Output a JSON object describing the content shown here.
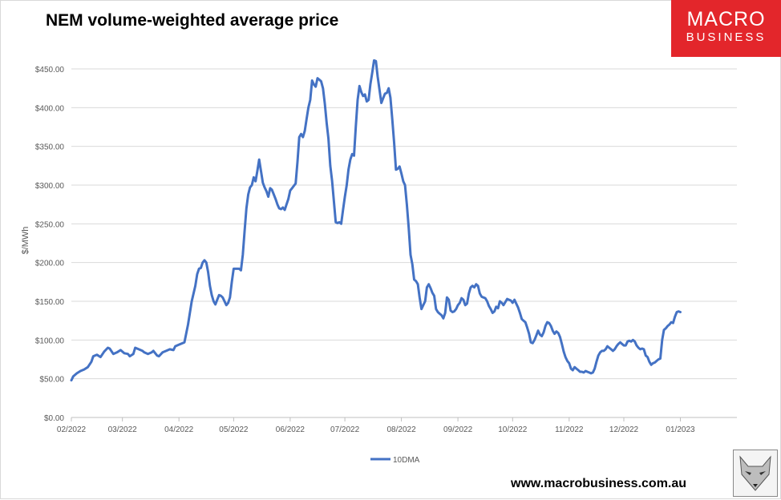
{
  "title": "NEM volume-weighted average price",
  "logo": {
    "line1": "MACRO",
    "line2": "BUSINESS",
    "color": "#e3262b"
  },
  "website": "www.macrobusiness.com.au",
  "chart_data": {
    "type": "line",
    "title": "NEM volume-weighted average price",
    "xlabel": "",
    "ylabel": "$/MWh",
    "ylim": [
      0,
      450
    ],
    "y_ticks": [
      {
        "value": 0,
        "label": "$0.00"
      },
      {
        "value": 50,
        "label": "$50.00"
      },
      {
        "value": 100,
        "label": "$100.00"
      },
      {
        "value": 150,
        "label": "$150.00"
      },
      {
        "value": 200,
        "label": "$200.00"
      },
      {
        "value": 250,
        "label": "$250.00"
      },
      {
        "value": 300,
        "label": "$300.00"
      },
      {
        "value": 350,
        "label": "$350.00"
      },
      {
        "value": 400,
        "label": "$400.00"
      },
      {
        "value": 450,
        "label": "$450.00"
      }
    ],
    "x_ticks": [
      {
        "day": 0,
        "label": "02/2022"
      },
      {
        "day": 28,
        "label": "03/2022"
      },
      {
        "day": 59,
        "label": "04/2022"
      },
      {
        "day": 89,
        "label": "05/2022"
      },
      {
        "day": 120,
        "label": "06/2022"
      },
      {
        "day": 150,
        "label": "07/2022"
      },
      {
        "day": 181,
        "label": "08/2022"
      },
      {
        "day": 212,
        "label": "09/2022"
      },
      {
        "day": 242,
        "label": "10/2022"
      },
      {
        "day": 273,
        "label": "11/2022"
      },
      {
        "day": 303,
        "label": "12/2022"
      },
      {
        "day": 334,
        "label": "01/2023"
      }
    ],
    "x_range_days": [
      0,
      365
    ],
    "legend": {
      "position": "bottom",
      "entries": [
        "10DMA"
      ]
    },
    "grid": true,
    "series": [
      {
        "name": "10DMA",
        "color": "#4472c4",
        "points": [
          [
            0,
            48
          ],
          [
            1,
            53
          ],
          [
            3,
            57
          ],
          [
            5,
            60
          ],
          [
            7,
            62
          ],
          [
            9,
            65
          ],
          [
            11,
            72
          ],
          [
            12,
            79
          ],
          [
            14,
            81
          ],
          [
            16,
            78
          ],
          [
            18,
            85
          ],
          [
            20,
            90
          ],
          [
            21,
            89
          ],
          [
            23,
            82
          ],
          [
            25,
            84
          ],
          [
            27,
            87
          ],
          [
            29,
            83
          ],
          [
            31,
            82
          ],
          [
            32,
            79
          ],
          [
            34,
            82
          ],
          [
            35,
            90
          ],
          [
            37,
            88
          ],
          [
            39,
            86
          ],
          [
            40,
            84
          ],
          [
            42,
            82
          ],
          [
            44,
            84
          ],
          [
            45,
            86
          ],
          [
            47,
            80
          ],
          [
            48,
            79
          ],
          [
            50,
            84
          ],
          [
            52,
            86
          ],
          [
            54,
            88
          ],
          [
            56,
            87
          ],
          [
            57,
            92
          ],
          [
            59,
            94
          ],
          [
            61,
            96
          ],
          [
            62,
            97
          ],
          [
            64,
            120
          ],
          [
            66,
            150
          ],
          [
            68,
            170
          ],
          [
            69,
            185
          ],
          [
            70,
            192
          ],
          [
            71,
            193
          ],
          [
            72,
            200
          ],
          [
            73,
            203
          ],
          [
            74,
            200
          ],
          [
            75,
            188
          ],
          [
            76,
            170
          ],
          [
            77,
            158
          ],
          [
            78,
            150
          ],
          [
            79,
            146
          ],
          [
            80,
            152
          ],
          [
            81,
            158
          ],
          [
            82,
            157
          ],
          [
            83,
            155
          ],
          [
            84,
            150
          ],
          [
            85,
            145
          ],
          [
            86,
            148
          ],
          [
            87,
            155
          ],
          [
            88,
            175
          ],
          [
            89,
            192
          ],
          [
            91,
            192
          ],
          [
            92,
            192
          ],
          [
            93,
            190
          ],
          [
            94,
            210
          ],
          [
            95,
            240
          ],
          [
            96,
            270
          ],
          [
            97,
            288
          ],
          [
            98,
            297
          ],
          [
            99,
            300
          ],
          [
            100,
            310
          ],
          [
            101,
            305
          ],
          [
            102,
            318
          ],
          [
            103,
            333
          ],
          [
            104,
            318
          ],
          [
            105,
            303
          ],
          [
            106,
            297
          ],
          [
            107,
            292
          ],
          [
            108,
            285
          ],
          [
            109,
            296
          ],
          [
            110,
            294
          ],
          [
            111,
            288
          ],
          [
            112,
            282
          ],
          [
            113,
            275
          ],
          [
            114,
            270
          ],
          [
            115,
            269
          ],
          [
            116,
            271
          ],
          [
            117,
            268
          ],
          [
            118,
            275
          ],
          [
            119,
            282
          ],
          [
            120,
            293
          ],
          [
            121,
            296
          ],
          [
            122,
            299
          ],
          [
            123,
            302
          ],
          [
            124,
            330
          ],
          [
            125,
            362
          ],
          [
            126,
            366
          ],
          [
            127,
            362
          ],
          [
            128,
            370
          ],
          [
            129,
            385
          ],
          [
            130,
            400
          ],
          [
            131,
            410
          ],
          [
            132,
            435
          ],
          [
            133,
            430
          ],
          [
            134,
            427
          ],
          [
            135,
            438
          ],
          [
            136,
            436
          ],
          [
            137,
            434
          ],
          [
            138,
            425
          ],
          [
            139,
            405
          ],
          [
            140,
            380
          ],
          [
            141,
            360
          ],
          [
            142,
            325
          ],
          [
            143,
            305
          ],
          [
            144,
            278
          ],
          [
            145,
            252
          ],
          [
            146,
            251
          ],
          [
            147,
            252
          ],
          [
            148,
            250
          ],
          [
            149,
            268
          ],
          [
            150,
            285
          ],
          [
            151,
            300
          ],
          [
            152,
            320
          ],
          [
            153,
            333
          ],
          [
            154,
            340
          ],
          [
            155,
            338
          ],
          [
            156,
            375
          ],
          [
            157,
            410
          ],
          [
            158,
            428
          ],
          [
            159,
            420
          ],
          [
            160,
            415
          ],
          [
            161,
            417
          ],
          [
            162,
            408
          ],
          [
            163,
            410
          ],
          [
            164,
            430
          ],
          [
            165,
            445
          ],
          [
            166,
            461
          ],
          [
            167,
            460
          ],
          [
            168,
            440
          ],
          [
            169,
            423
          ],
          [
            170,
            406
          ],
          [
            171,
            412
          ],
          [
            172,
            418
          ],
          [
            173,
            419
          ],
          [
            174,
            425
          ],
          [
            175,
            413
          ],
          [
            176,
            385
          ],
          [
            177,
            355
          ],
          [
            178,
            320
          ],
          [
            179,
            321
          ],
          [
            180,
            324
          ],
          [
            181,
            315
          ],
          [
            182,
            305
          ],
          [
            183,
            300
          ],
          [
            184,
            275
          ],
          [
            185,
            245
          ],
          [
            186,
            210
          ],
          [
            187,
            198
          ],
          [
            188,
            178
          ],
          [
            189,
            176
          ],
          [
            190,
            172
          ],
          [
            191,
            155
          ],
          [
            192,
            140
          ],
          [
            193,
            145
          ],
          [
            194,
            150
          ],
          [
            195,
            168
          ],
          [
            196,
            172
          ],
          [
            197,
            167
          ],
          [
            198,
            161
          ],
          [
            199,
            157
          ],
          [
            200,
            140
          ],
          [
            201,
            136
          ],
          [
            202,
            134
          ],
          [
            203,
            132
          ],
          [
            204,
            128
          ],
          [
            205,
            135
          ],
          [
            206,
            155
          ],
          [
            207,
            152
          ],
          [
            208,
            138
          ],
          [
            209,
            136
          ],
          [
            210,
            137
          ],
          [
            211,
            140
          ],
          [
            212,
            145
          ],
          [
            213,
            148
          ],
          [
            214,
            154
          ],
          [
            215,
            152
          ],
          [
            216,
            145
          ],
          [
            217,
            147
          ],
          [
            218,
            160
          ],
          [
            219,
            168
          ],
          [
            220,
            170
          ],
          [
            221,
            168
          ],
          [
            222,
            172
          ],
          [
            223,
            170
          ],
          [
            224,
            160
          ],
          [
            225,
            156
          ],
          [
            226,
            155
          ],
          [
            227,
            154
          ],
          [
            228,
            150
          ],
          [
            229,
            144
          ],
          [
            230,
            140
          ],
          [
            231,
            135
          ],
          [
            232,
            137
          ],
          [
            233,
            143
          ],
          [
            234,
            141
          ],
          [
            235,
            150
          ],
          [
            236,
            148
          ],
          [
            237,
            145
          ],
          [
            238,
            149
          ],
          [
            239,
            153
          ],
          [
            240,
            152
          ],
          [
            241,
            151
          ],
          [
            242,
            148
          ],
          [
            243,
            152
          ],
          [
            244,
            147
          ],
          [
            245,
            142
          ],
          [
            246,
            135
          ],
          [
            247,
            127
          ],
          [
            248,
            125
          ],
          [
            249,
            123
          ],
          [
            250,
            116
          ],
          [
            251,
            108
          ],
          [
            252,
            97
          ],
          [
            253,
            96
          ],
          [
            254,
            100
          ],
          [
            255,
            106
          ],
          [
            256,
            112
          ],
          [
            257,
            107
          ],
          [
            258,
            105
          ],
          [
            259,
            110
          ],
          [
            260,
            118
          ],
          [
            261,
            123
          ],
          [
            262,
            122
          ],
          [
            263,
            118
          ],
          [
            264,
            112
          ],
          [
            265,
            108
          ],
          [
            266,
            111
          ],
          [
            267,
            109
          ],
          [
            268,
            104
          ],
          [
            269,
            95
          ],
          [
            270,
            85
          ],
          [
            271,
            78
          ],
          [
            272,
            73
          ],
          [
            273,
            70
          ],
          [
            274,
            63
          ],
          [
            275,
            61
          ],
          [
            276,
            65
          ],
          [
            277,
            63
          ],
          [
            278,
            61
          ],
          [
            279,
            59
          ],
          [
            280,
            59
          ],
          [
            281,
            58
          ],
          [
            282,
            60
          ],
          [
            283,
            59
          ],
          [
            284,
            58
          ],
          [
            285,
            57
          ],
          [
            286,
            58
          ],
          [
            287,
            63
          ],
          [
            288,
            72
          ],
          [
            289,
            80
          ],
          [
            290,
            84
          ],
          [
            291,
            86
          ],
          [
            292,
            86
          ],
          [
            293,
            88
          ],
          [
            294,
            92
          ],
          [
            295,
            90
          ],
          [
            296,
            88
          ],
          [
            297,
            86
          ],
          [
            298,
            88
          ],
          [
            299,
            92
          ],
          [
            300,
            95
          ],
          [
            301,
            97
          ],
          [
            302,
            95
          ],
          [
            303,
            93
          ],
          [
            304,
            93
          ],
          [
            305,
            98
          ],
          [
            306,
            99
          ],
          [
            307,
            98
          ],
          [
            308,
            100
          ],
          [
            309,
            98
          ],
          [
            310,
            93
          ],
          [
            311,
            90
          ],
          [
            312,
            88
          ],
          [
            313,
            89
          ],
          [
            314,
            88
          ],
          [
            315,
            80
          ],
          [
            316,
            78
          ],
          [
            317,
            72
          ],
          [
            318,
            68
          ],
          [
            319,
            70
          ],
          [
            320,
            71
          ],
          [
            321,
            73
          ],
          [
            322,
            75
          ],
          [
            323,
            76
          ],
          [
            324,
            100
          ],
          [
            325,
            113
          ],
          [
            326,
            115
          ],
          [
            327,
            118
          ],
          [
            328,
            120
          ],
          [
            329,
            123
          ],
          [
            330,
            122
          ],
          [
            331,
            130
          ],
          [
            332,
            136
          ],
          [
            333,
            137
          ],
          [
            334,
            136
          ]
        ]
      }
    ]
  }
}
